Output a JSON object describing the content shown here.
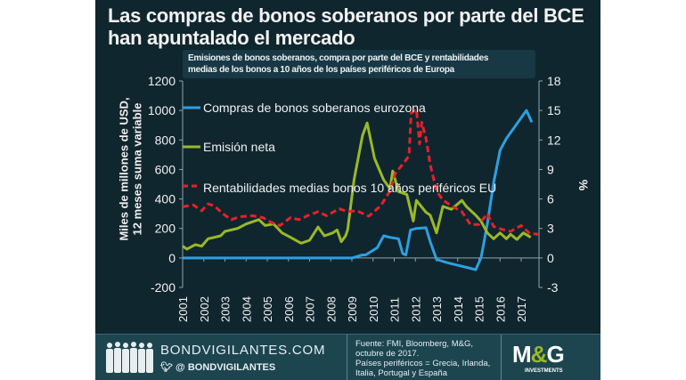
{
  "title": "Las compras de bonos soberanos por parte del BCE han apuntalado el mercado",
  "subtitle_line1": "Emisiones de bonos soberanos, compra por parte del BCE y rentabilidades",
  "subtitle_line2": "medias de los bonos a 10 años de los países periféricos de Europa",
  "footer": {
    "brand": "BONDVIGILANTES.COM",
    "twitter": "BONDVIGILANTES",
    "source_line1": "Fuente: FMI, Bloomberg, M&G, octubre de 2017.",
    "source_line2": "Países periféricos = Grecia, Irlanda, Italia, Portugal y España",
    "logo_text": "M&G",
    "logo_sub": "INVESTMENTS"
  },
  "colors": {
    "background": "#10262e",
    "blue": "#2f9fe0",
    "green": "#9ab82a",
    "red": "#e8202a"
  },
  "chart_data": {
    "type": "line",
    "ylabel": "Miles de millones de USD, 12 meses suma variable",
    "y2label": "%",
    "ylim": [
      -200,
      1200
    ],
    "y2lim": [
      -3,
      18
    ],
    "yticks": [
      "1200",
      "1000",
      "800",
      "600",
      "400",
      "200",
      "0",
      "-200"
    ],
    "y2ticks": [
      "18",
      "15",
      "12",
      "9",
      "6",
      "3",
      "0",
      "-3"
    ],
    "xticks": [
      "2001",
      "2002",
      "2003",
      "2004",
      "2005",
      "2006",
      "2007",
      "2008",
      "2009",
      "2010",
      "2011",
      "2012",
      "2013",
      "2014",
      "2015",
      "2016",
      "2017"
    ],
    "series": [
      {
        "name": "Compras de bonos soberanos eurozona",
        "axis": "left",
        "color": "#2f9fe0",
        "style": "solid",
        "x": [
          2001,
          2009.0,
          2009.5,
          2009.65,
          2010.2,
          2010.5,
          2010.8,
          2011.2,
          2011.4,
          2011.55,
          2011.77,
          2012.05,
          2012.5,
          2012.7,
          2013.0,
          2013.45,
          2014.0,
          2014.6,
          2014.85,
          2015.1,
          2015.4,
          2015.7,
          2016.0,
          2016.3,
          2016.7,
          2017.0,
          2017.25,
          2017.5
        ],
        "y": [
          0,
          0,
          20,
          20,
          70,
          150,
          140,
          130,
          30,
          20,
          190,
          200,
          205,
          110,
          -10,
          -30,
          -50,
          -70,
          -80,
          0,
          230,
          510,
          730,
          810,
          890,
          950,
          1000,
          920
        ]
      },
      {
        "name": "Emisión neta",
        "axis": "left",
        "color": "#9ab82a",
        "style": "solid",
        "x": [
          2001.0,
          2001.2,
          2001.6,
          2001.9,
          2002.2,
          2002.8,
          2003.0,
          2003.6,
          2004.0,
          2004.6,
          2004.9,
          2005.3,
          2005.7,
          2006.1,
          2006.6,
          2007.0,
          2007.4,
          2007.7,
          2008.1,
          2008.3,
          2008.5,
          2008.7,
          2008.8,
          2009.1,
          2009.5,
          2009.72,
          2010.07,
          2010.5,
          2010.8,
          2010.93,
          2011.2,
          2011.6,
          2011.9,
          2012.05,
          2012.5,
          2012.7,
          2013.0,
          2013.3,
          2013.7,
          2014.2,
          2014.4,
          2014.85,
          2015.1,
          2015.4,
          2015.7,
          2016.0,
          2016.3,
          2016.5,
          2016.8,
          2017.1,
          2017.45
        ],
        "y": [
          80,
          60,
          90,
          80,
          130,
          150,
          180,
          200,
          230,
          260,
          220,
          230,
          170,
          140,
          100,
          120,
          210,
          150,
          170,
          190,
          110,
          150,
          190,
          530,
          830,
          915,
          675,
          530,
          470,
          590,
          450,
          430,
          250,
          390,
          310,
          290,
          170,
          350,
          330,
          390,
          350,
          290,
          250,
          170,
          130,
          170,
          130,
          160,
          125,
          170,
          140
        ]
      },
      {
        "name": "Rentabilidades medias bonos 10 años periféricos EU",
        "axis": "right",
        "color": "#e8202a",
        "style": "dashed",
        "x": [
          2001.0,
          2001.5,
          2001.9,
          2002.2,
          2002.5,
          2002.9,
          2003.3,
          2003.7,
          2004.3,
          2004.8,
          2005.2,
          2005.6,
          2006.1,
          2006.5,
          2006.9,
          2007.4,
          2007.8,
          2008.4,
          2008.8,
          2009.23,
          2009.8,
          2010.36,
          2010.8,
          2011.05,
          2011.5,
          2011.7,
          2011.8,
          2012.05,
          2012.2,
          2012.3,
          2012.5,
          2012.7,
          2013.0,
          2013.3,
          2013.7,
          2014.2,
          2014.6,
          2015.0,
          2015.4,
          2015.7,
          2016.1,
          2016.5,
          2017.0,
          2017.4,
          2017.8
        ],
        "y": [
          5.2,
          5.4,
          4.8,
          5.5,
          5.3,
          4.5,
          3.9,
          4.2,
          4.3,
          4.1,
          3.6,
          3.3,
          4.1,
          3.9,
          4.3,
          4.7,
          4.3,
          5.0,
          4.7,
          4.8,
          4.25,
          5.3,
          6.8,
          8.6,
          9.8,
          10.4,
          14.7,
          15.1,
          11.6,
          13.8,
          12.2,
          9.5,
          6.8,
          5.9,
          5.3,
          4.7,
          3.4,
          3.4,
          4.5,
          3.2,
          2.9,
          2.7,
          3.3,
          2.5,
          2.4
        ]
      }
    ],
    "legend": "top-left, inside plot"
  }
}
